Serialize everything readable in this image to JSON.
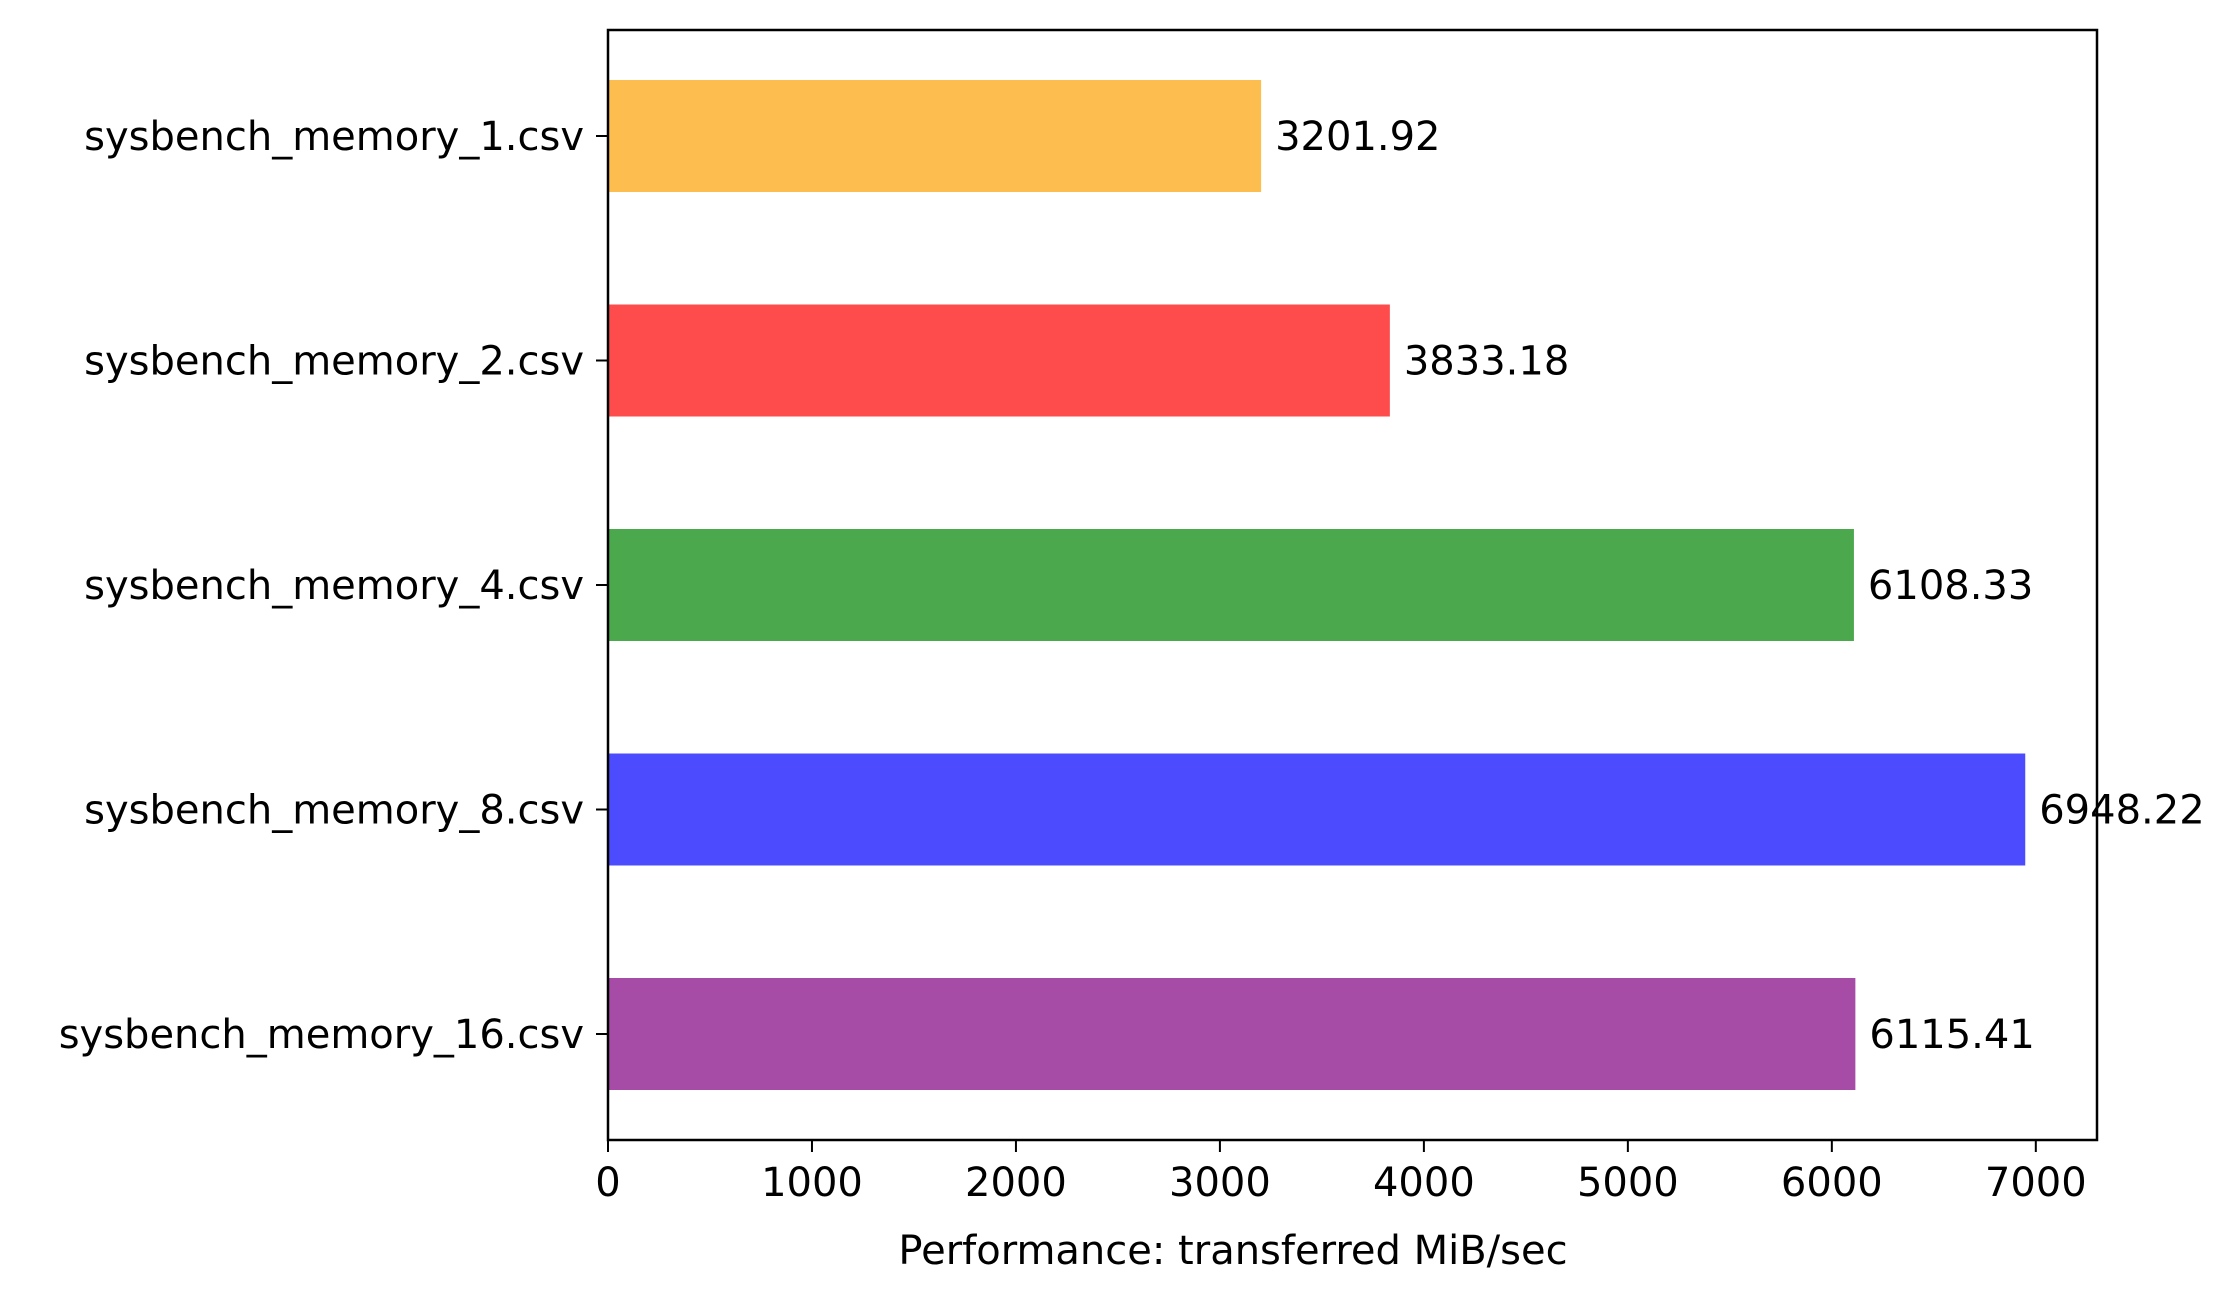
{
  "chart_data": {
    "type": "bar",
    "orientation": "horizontal",
    "title": "",
    "xlabel": "Performance: transferred MiB/sec",
    "ylabel": "",
    "xlim": [
      0,
      7300
    ],
    "xticks": [
      0,
      1000,
      2000,
      3000,
      4000,
      5000,
      6000,
      7000
    ],
    "categories": [
      "sysbench_memory_1.csv",
      "sysbench_memory_2.csv",
      "sysbench_memory_4.csv",
      "sysbench_memory_8.csv",
      "sysbench_memory_16.csv"
    ],
    "values": [
      3201.92,
      3833.18,
      6108.33,
      6948.22,
      6115.41
    ],
    "value_labels": [
      "3201.92",
      "3833.18",
      "6108.33",
      "6948.22",
      "6115.41"
    ],
    "colors": [
      "#fdbe4f",
      "#fe4c4c",
      "#4ca84c",
      "#4c4cfe",
      "#a64ca6"
    ],
    "grid": false,
    "legend": "none"
  }
}
